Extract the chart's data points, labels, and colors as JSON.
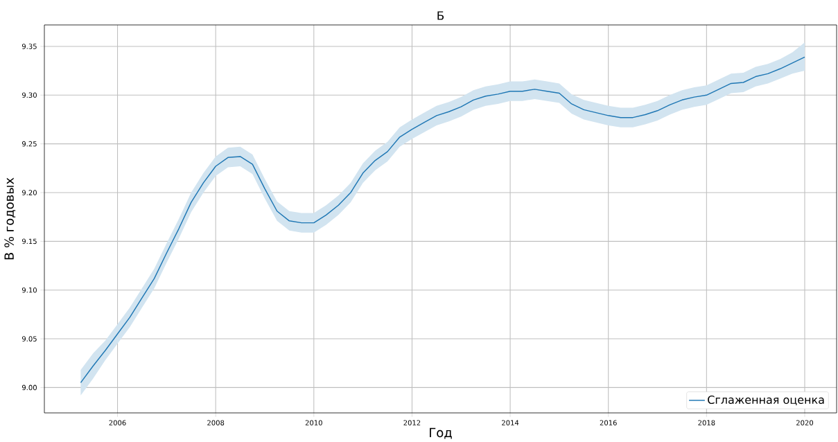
{
  "chart_data": {
    "type": "line",
    "title": "Б",
    "xlabel": "Год",
    "ylabel": "В % годовых",
    "x": [
      2005.25,
      2005.5,
      2005.75,
      2006.0,
      2006.25,
      2006.5,
      2006.75,
      2007.0,
      2007.25,
      2007.5,
      2007.75,
      2008.0,
      2008.25,
      2008.5,
      2008.75,
      2009.0,
      2009.25,
      2009.5,
      2009.75,
      2010.0,
      2010.25,
      2010.5,
      2010.75,
      2011.0,
      2011.25,
      2011.5,
      2011.75,
      2012.0,
      2012.25,
      2012.5,
      2012.75,
      2013.0,
      2013.25,
      2013.5,
      2013.75,
      2014.0,
      2014.25,
      2014.5,
      2014.75,
      2015.0,
      2015.25,
      2015.5,
      2015.75,
      2016.0,
      2016.25,
      2016.5,
      2016.75,
      2017.0,
      2017.25,
      2017.5,
      2017.75,
      2018.0,
      2018.25,
      2018.5,
      2018.75,
      2019.0,
      2019.25,
      2019.5,
      2019.75,
      2020.0
    ],
    "series": [
      {
        "name": "Сглаженная оценка",
        "color": "#1f77b4",
        "values": [
          9.005,
          9.022,
          9.038,
          9.055,
          9.072,
          9.092,
          9.112,
          9.138,
          9.163,
          9.19,
          9.21,
          9.227,
          9.236,
          9.237,
          9.229,
          9.204,
          9.181,
          9.171,
          9.169,
          9.169,
          9.177,
          9.187,
          9.2,
          9.22,
          9.233,
          9.242,
          9.257,
          9.265,
          9.272,
          9.279,
          9.283,
          9.288,
          9.295,
          9.299,
          9.301,
          9.304,
          9.304,
          9.306,
          9.304,
          9.302,
          9.291,
          9.285,
          9.282,
          9.279,
          9.277,
          9.277,
          9.28,
          9.284,
          9.29,
          9.295,
          9.298,
          9.3,
          9.306,
          9.312,
          9.313,
          9.319,
          9.322,
          9.327,
          9.333,
          9.339
        ],
        "lower": [
          8.992,
          9.009,
          9.028,
          9.045,
          9.062,
          9.082,
          9.102,
          9.128,
          9.153,
          9.18,
          9.2,
          9.217,
          9.226,
          9.227,
          9.219,
          9.194,
          9.171,
          9.161,
          9.159,
          9.159,
          9.167,
          9.177,
          9.19,
          9.21,
          9.223,
          9.232,
          9.247,
          9.255,
          9.262,
          9.269,
          9.273,
          9.278,
          9.285,
          9.289,
          9.291,
          9.294,
          9.294,
          9.296,
          9.294,
          9.292,
          9.281,
          9.275,
          9.272,
          9.269,
          9.267,
          9.267,
          9.27,
          9.274,
          9.28,
          9.285,
          9.288,
          9.29,
          9.296,
          9.302,
          9.303,
          9.309,
          9.312,
          9.317,
          9.322,
          9.325
        ],
        "upper": [
          9.018,
          9.035,
          9.048,
          9.065,
          9.082,
          9.102,
          9.122,
          9.148,
          9.173,
          9.2,
          9.22,
          9.237,
          9.246,
          9.247,
          9.239,
          9.214,
          9.191,
          9.181,
          9.179,
          9.179,
          9.187,
          9.197,
          9.21,
          9.23,
          9.243,
          9.252,
          9.267,
          9.275,
          9.282,
          9.289,
          9.293,
          9.298,
          9.305,
          9.309,
          9.311,
          9.314,
          9.314,
          9.316,
          9.314,
          9.312,
          9.301,
          9.295,
          9.292,
          9.289,
          9.287,
          9.287,
          9.29,
          9.294,
          9.3,
          9.305,
          9.308,
          9.31,
          9.316,
          9.322,
          9.323,
          9.329,
          9.332,
          9.337,
          9.344,
          9.354
        ]
      }
    ],
    "xlim": [
      2004.51,
      2020.65
    ],
    "ylim": [
      8.974,
      9.372
    ],
    "xticks": [
      2006,
      2008,
      2010,
      2012,
      2014,
      2016,
      2018,
      2020
    ],
    "yticks": [
      {
        "value": 9.0,
        "label": "9.00"
      },
      9.05,
      {
        "value": 9.1,
        "label": "9.10"
      },
      9.15,
      {
        "value": 9.2,
        "label": "9.20"
      },
      9.25,
      {
        "value": 9.3,
        "label": "9.30"
      },
      9.35
    ],
    "grid": true,
    "legend": "bottom right"
  }
}
